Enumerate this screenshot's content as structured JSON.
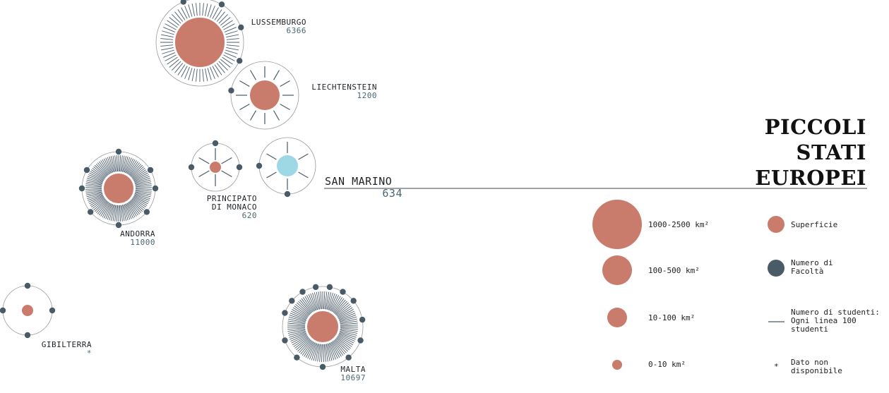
{
  "title": [
    "PICCOLI",
    "STATI",
    "EUROPEI"
  ],
  "colors": {
    "area": "#c97b6c",
    "area_highlight": "#9dd8e4",
    "faculty": "#4a5b68",
    "students": "#4a5b68",
    "ring": "#9a9a9a"
  },
  "states": [
    {
      "name": "LUSSEMBURGO",
      "students": "6366",
      "area_class": "1000-2500 km²",
      "faculties": 4
    },
    {
      "name": "LIECHTENSTEIN",
      "students": "1200",
      "area_class": "100-500 km²",
      "faculties": 1
    },
    {
      "name": "PRINCIPATO DI MONACO",
      "name_lines": [
        "PRINCIPATO",
        "DI MONACO"
      ],
      "students": "620",
      "area_class": "0-10 km²",
      "faculties": 3
    },
    {
      "name": "SAN MARINO",
      "students": "634",
      "area_class": "10-100 km²",
      "faculties": 2,
      "highlight": true
    },
    {
      "name": "ANDORRA",
      "students": "11000",
      "area_class": "100-500 km²",
      "faculties": 8
    },
    {
      "name": "GIBILTERRA",
      "students": "*",
      "area_class": "0-10 km²",
      "faculties": 4
    },
    {
      "name": "MALTA",
      "students": "10697",
      "area_class": "100-500 km²",
      "faculties": 13
    }
  ],
  "legend": {
    "sizes": [
      "1000-2500 km²",
      "100-500 km²",
      "10-100 km²",
      "0-10 km²"
    ],
    "keys": {
      "superficie": "Superficie",
      "facolta": "Numero di\nFacoltà",
      "studenti": "Numero di studenti:\nOgni linea 100\nstudenti",
      "asterisk": "*",
      "nodata": "Dato non\ndisponibile"
    }
  }
}
